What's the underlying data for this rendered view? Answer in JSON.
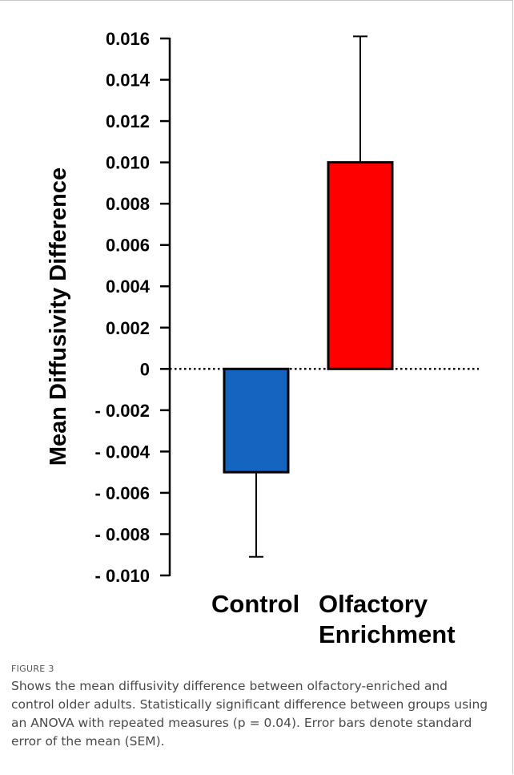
{
  "chart_data": {
    "type": "bar",
    "ylabel": "Mean Diffusivity Difference",
    "ylim": [
      -0.01,
      0.016
    ],
    "yticks": [
      {
        "value": 0.016,
        "label": "0.016"
      },
      {
        "value": 0.014,
        "label": "0.014"
      },
      {
        "value": 0.012,
        "label": "0.012"
      },
      {
        "value": 0.01,
        "label": "0.010"
      },
      {
        "value": 0.008,
        "label": "0.008"
      },
      {
        "value": 0.006,
        "label": "0.006"
      },
      {
        "value": 0.004,
        "label": "0.004"
      },
      {
        "value": 0.002,
        "label": "0.002"
      },
      {
        "value": 0,
        "label": "0"
      },
      {
        "value": -0.002,
        "label": "- 0.002"
      },
      {
        "value": -0.004,
        "label": "- 0.004"
      },
      {
        "value": -0.006,
        "label": "- 0.006"
      },
      {
        "value": -0.008,
        "label": "- 0.008"
      },
      {
        "value": -0.01,
        "label": "- 0.010"
      }
    ],
    "bars": [
      {
        "category": [
          "Control"
        ],
        "value": -0.005,
        "error": 0.0041,
        "color": "#1565c0"
      },
      {
        "category": [
          "Olfactory",
          "Enrichment"
        ],
        "value": 0.01,
        "error": 0.0061,
        "color": "#ff0000"
      }
    ],
    "zero_line": "dotted"
  },
  "caption": {
    "label": "FIGURE 3",
    "text": "Shows the mean diffusivity difference between olfactory-enriched and control older adults. Statistically significant difference between groups using an ANOVA with repeated measures (p = 0.04). Error bars denote standard error of the mean (SEM)."
  }
}
